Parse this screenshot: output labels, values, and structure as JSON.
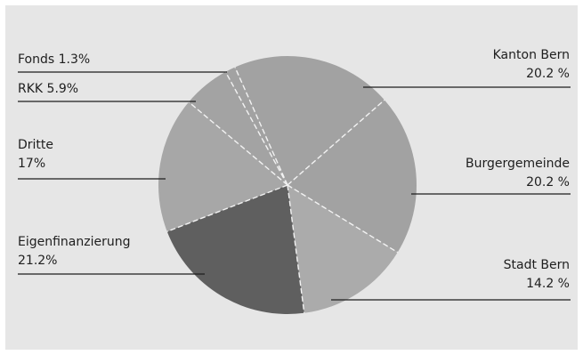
{
  "chart_data": {
    "type": "pie",
    "title": "",
    "slices": [
      {
        "label": "Kanton Bern",
        "value": 20.2,
        "display": "20.2 %",
        "color": "#a2a2a2"
      },
      {
        "label": "Burgergemeinde",
        "value": 20.2,
        "display": "20.2 %",
        "color": "#a2a2a2"
      },
      {
        "label": "Stadt Bern",
        "value": 14.2,
        "display": "14.2 %",
        "color": "#ababab"
      },
      {
        "label": "Eigenfinanzierung",
        "value": 21.2,
        "display": "21.2%",
        "color": "#5f5f5f"
      },
      {
        "label": "Dritte",
        "value": 17,
        "display": "17%",
        "color": "#a7a7a7"
      },
      {
        "label": "RKK",
        "value": 5.9,
        "display": "5.9%",
        "color": "#a3a3a3"
      },
      {
        "label": "Fonds",
        "value": 1.3,
        "display": "1.3%",
        "color": "#a2a2a2"
      }
    ],
    "start_angle_deg": -24,
    "direction": "clockwise",
    "divider_style": "dashed-white",
    "legend": "callouts"
  }
}
